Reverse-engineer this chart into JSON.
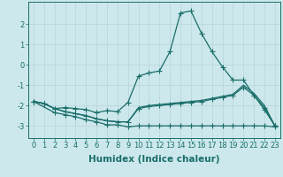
{
  "xlabel": "Humidex (Indice chaleur)",
  "background_color": "#cce8ec",
  "grid_color": "#b8d4d8",
  "line_color": "#1a6e6a",
  "xlim": [
    -0.5,
    23.5
  ],
  "ylim": [
    -3.6,
    3.1
  ],
  "yticks": [
    -3,
    -2,
    -1,
    0,
    1,
    2
  ],
  "xticks": [
    0,
    1,
    2,
    3,
    4,
    5,
    6,
    7,
    8,
    9,
    10,
    11,
    12,
    13,
    14,
    15,
    16,
    17,
    18,
    19,
    20,
    21,
    22,
    23
  ],
  "curve1_x": [
    0,
    1,
    2,
    3,
    4,
    5,
    6,
    7,
    8,
    9,
    10,
    11,
    12,
    13,
    14,
    15,
    16,
    17,
    18,
    19,
    20,
    21,
    22,
    23
  ],
  "curve1_y": [
    -1.8,
    -1.9,
    -2.15,
    -2.1,
    -2.15,
    -2.2,
    -2.35,
    -2.25,
    -2.3,
    -1.85,
    -0.55,
    -0.4,
    -0.3,
    0.65,
    2.55,
    2.65,
    1.55,
    0.65,
    -0.1,
    -0.75,
    -0.75,
    -1.5,
    -2.2,
    -3.0
  ],
  "curve2_x": [
    0,
    1,
    2,
    3,
    4,
    5,
    6,
    7,
    8,
    9,
    10,
    11,
    12,
    13,
    14,
    15,
    16,
    17,
    18,
    19,
    20,
    21,
    22,
    23
  ],
  "curve2_y": [
    -1.8,
    -1.9,
    -2.15,
    -2.3,
    -2.4,
    -2.5,
    -2.65,
    -2.75,
    -2.8,
    -2.8,
    -2.15,
    -2.05,
    -2.0,
    -1.95,
    -1.9,
    -1.85,
    -1.8,
    -1.7,
    -1.6,
    -1.5,
    -1.1,
    -1.5,
    -2.1,
    -3.0
  ],
  "curve3_x": [
    0,
    1,
    2,
    3,
    4,
    5,
    6,
    7,
    8,
    9,
    10,
    11,
    12,
    13,
    14,
    15,
    16,
    17,
    18,
    19,
    20,
    21,
    22,
    23
  ],
  "curve3_y": [
    -1.8,
    -1.9,
    -2.15,
    -2.3,
    -2.4,
    -2.5,
    -2.65,
    -2.75,
    -2.8,
    -2.8,
    -2.1,
    -2.0,
    -1.95,
    -1.9,
    -1.85,
    -1.8,
    -1.75,
    -1.65,
    -1.55,
    -1.45,
    -1.0,
    -1.4,
    -2.0,
    -3.0
  ],
  "curve4_x": [
    0,
    2,
    3,
    4,
    5,
    6,
    7,
    8,
    9,
    10,
    11,
    12,
    13,
    14,
    15,
    16,
    17,
    18,
    19,
    20,
    21,
    22,
    23
  ],
  "curve4_y": [
    -1.8,
    -2.35,
    -2.45,
    -2.55,
    -2.7,
    -2.8,
    -2.95,
    -2.95,
    -3.05,
    -3.0,
    -3.0,
    -3.0,
    -3.0,
    -3.0,
    -3.0,
    -3.0,
    -3.0,
    -3.0,
    -3.0,
    -3.0,
    -3.0,
    -3.0,
    -3.05
  ],
  "fontsize_ticks": 6,
  "fontsize_label": 7.5
}
